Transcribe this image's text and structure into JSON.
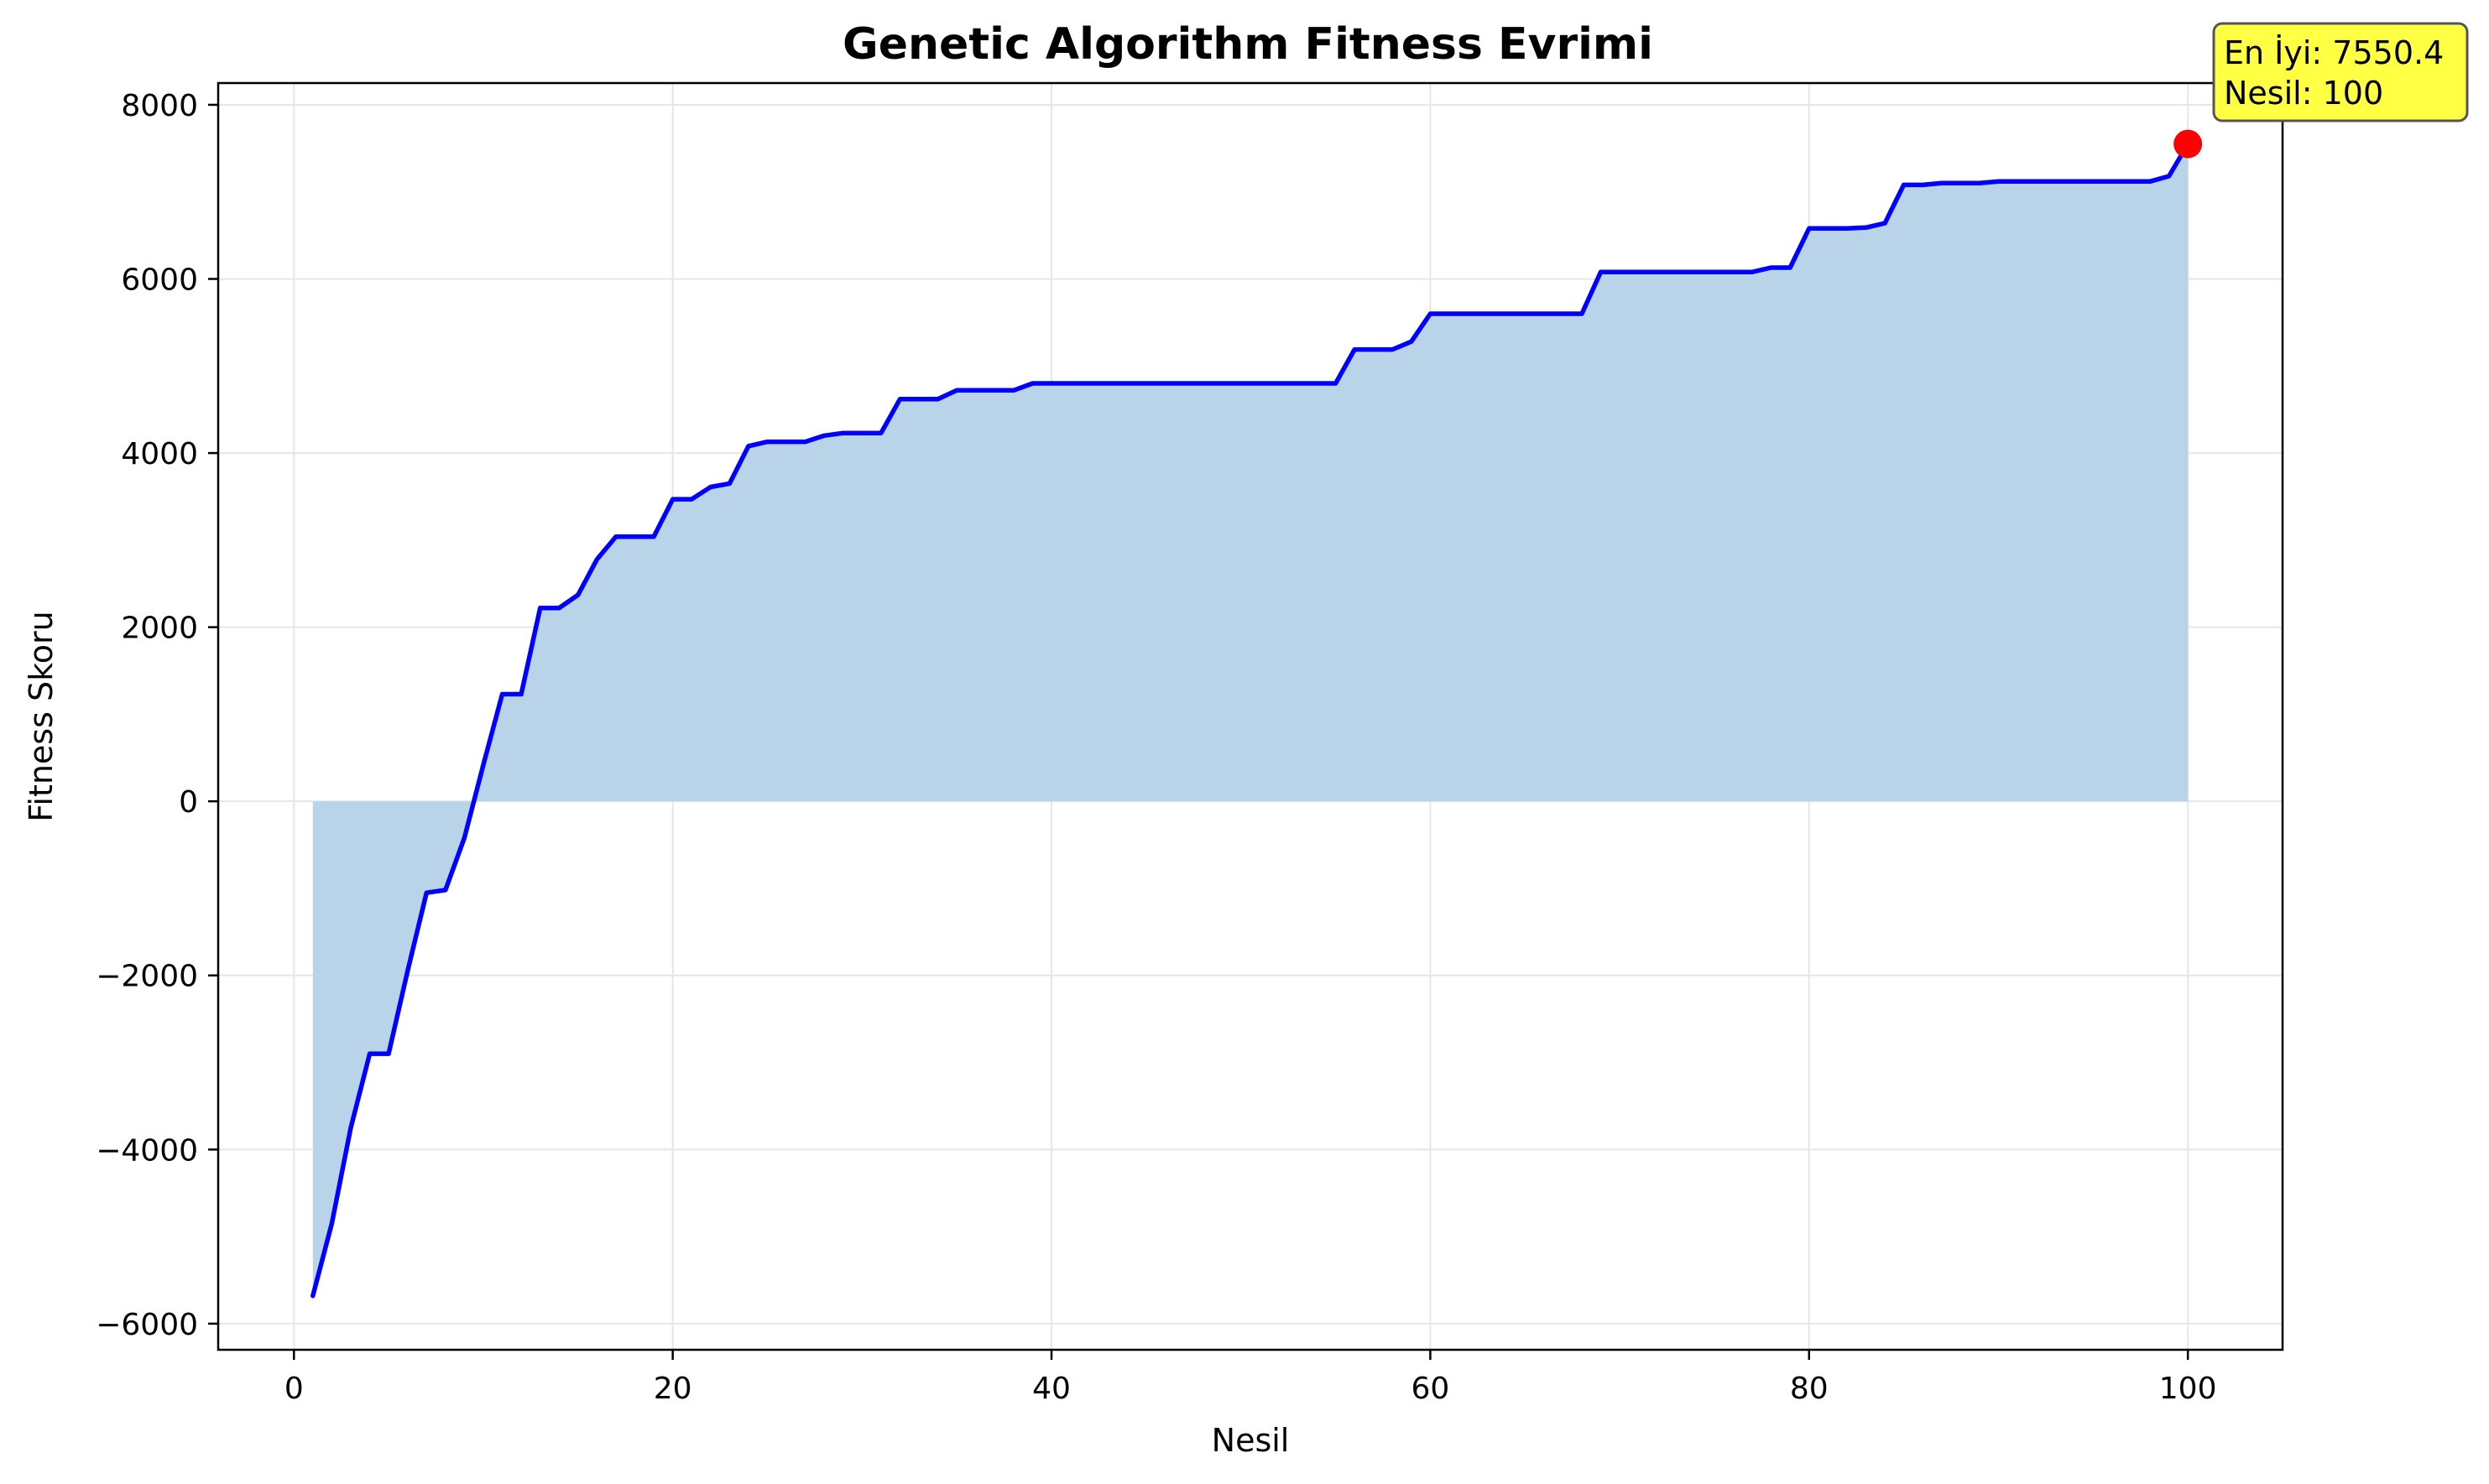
{
  "chart_data": {
    "type": "line",
    "title": "Genetic Algorithm Fitness Evrimi",
    "xlabel": "Nesil",
    "ylabel": "Fitness Skoru",
    "xlim": [
      -4,
      105
    ],
    "ylim": [
      -6300,
      8250
    ],
    "grid": true,
    "fill_to_zero": true,
    "colors": {
      "line": "#0000ff",
      "fill": "#b9d4e8",
      "marker": "#ff0000",
      "annotation_bg": "#ffff44",
      "annotation_border": "#555555",
      "grid": "#e6e6e6"
    },
    "x_ticks": [
      0,
      20,
      40,
      60,
      80,
      100
    ],
    "x_tick_labels": [
      "0",
      "20",
      "40",
      "60",
      "80",
      "100"
    ],
    "y_ticks": [
      -6000,
      -4000,
      -2000,
      0,
      2000,
      4000,
      6000,
      8000
    ],
    "y_tick_labels": [
      "−6000",
      "−4000",
      "−2000",
      "0",
      "2000",
      "4000",
      "6000",
      "8000"
    ],
    "series": [
      {
        "x": [
          1,
          2,
          3,
          4,
          5,
          6,
          7,
          8,
          9,
          10,
          11,
          12,
          13,
          14,
          15,
          16,
          17,
          18,
          19,
          20,
          21,
          22,
          23,
          24,
          25,
          26,
          27,
          28,
          29,
          30,
          31,
          32,
          33,
          34,
          35,
          36,
          37,
          38,
          39,
          40,
          41,
          42,
          43,
          44,
          45,
          46,
          47,
          48,
          49,
          50,
          51,
          52,
          53,
          54,
          55,
          56,
          57,
          58,
          59,
          60,
          61,
          62,
          63,
          64,
          65,
          66,
          67,
          68,
          69,
          70,
          71,
          72,
          73,
          74,
          75,
          76,
          77,
          78,
          79,
          80,
          81,
          82,
          83,
          84,
          85,
          86,
          87,
          88,
          89,
          90,
          91,
          92,
          93,
          94,
          95,
          96,
          97,
          98,
          99,
          100
        ],
        "values": [
          -5680,
          -4850,
          -3750,
          -2900,
          -2900,
          -1950,
          -1050,
          -1020,
          -420,
          420,
          1230,
          1230,
          2220,
          2220,
          2370,
          2780,
          3040,
          3040,
          3040,
          3470,
          3470,
          3610,
          3650,
          4080,
          4130,
          4130,
          4130,
          4200,
          4230,
          4230,
          4230,
          4620,
          4620,
          4620,
          4720,
          4720,
          4720,
          4720,
          4800,
          4800,
          4800,
          4800,
          4800,
          4800,
          4800,
          4800,
          4800,
          4800,
          4800,
          4800,
          4800,
          4800,
          4800,
          4800,
          4800,
          5190,
          5190,
          5190,
          5280,
          5600,
          5600,
          5600,
          5600,
          5600,
          5600,
          5600,
          5600,
          5600,
          6080,
          6080,
          6080,
          6080,
          6080,
          6080,
          6080,
          6080,
          6080,
          6130,
          6130,
          6580,
          6580,
          6580,
          6590,
          6640,
          7080,
          7080,
          7100,
          7100,
          7100,
          7120,
          7120,
          7120,
          7120,
          7120,
          7120,
          7120,
          7120,
          7120,
          7180,
          7550.4
        ]
      }
    ],
    "best_point": {
      "x": 100,
      "y": 7550.4
    },
    "annotation": {
      "line1": "En İyi: 7550.4",
      "line2": "Nesil: 100"
    }
  }
}
